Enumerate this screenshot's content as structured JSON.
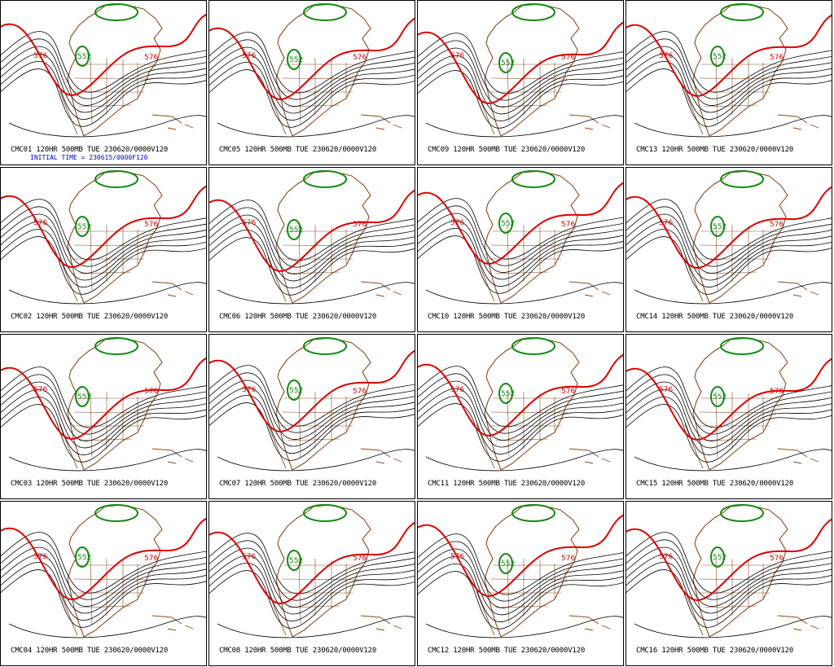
{
  "colors": {
    "contour": "#000000",
    "ridge_576": "#dd0000",
    "low_552": "#138a13",
    "geography": "#8b4a22",
    "initial_time_text": "#0000cc"
  },
  "contour_labels": {
    "red": "576",
    "green": "552"
  },
  "initial_time": "INITIAL TIME = 230615/0000F120",
  "panels": [
    {
      "caption": "CMC01 120HR 500MB TUE 230620/0000V120"
    },
    {
      "caption": "CMC05 120HR 500MB TUE 230620/0000V120"
    },
    {
      "caption": "CMC09 120HR 500MB TUE 230620/0000V120"
    },
    {
      "caption": "CMC13 120HR 500MB TUE 230620/0000V120"
    },
    {
      "caption": "CMC02 120HR 500MB TUE 230620/0000V120"
    },
    {
      "caption": "CMC06 120HR 500MB TUE 230620/0000V120"
    },
    {
      "caption": "CMC10 120HR 500MB TUE 230620/0000V120"
    },
    {
      "caption": "CMC14 120HR 500MB TUE 230620/0000V120"
    },
    {
      "caption": "CMC03 120HR 500MB TUE 230620/0000V120"
    },
    {
      "caption": "CMC07 120HR 500MB TUE 230620/0000V120"
    },
    {
      "caption": "CMC11 120HR 500MB TUE 230620/0000V120"
    },
    {
      "caption": "CMC15 120HR 500MB TUE 230620/0000V120"
    },
    {
      "caption": "CMC04 120HR 500MB TUE 230620/0000V120"
    },
    {
      "caption": "CMC08 120HR 500MB TUE 230620/0000V120"
    },
    {
      "caption": "CMC12 120HR 500MB TUE 230620/0000V120"
    },
    {
      "caption": "CMC16 120HR 500MB TUE 230620/0000V120"
    }
  ]
}
